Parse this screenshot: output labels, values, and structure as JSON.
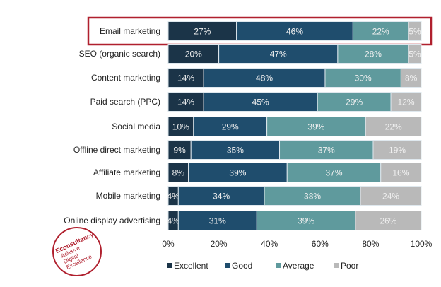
{
  "chart_data": {
    "type": "bar",
    "stacked": true,
    "orientation": "horizontal",
    "categories": [
      "Email marketing",
      "SEO (organic search)",
      "Content marketing",
      "Paid search (PPC)",
      "Social media",
      "Offline direct marketing",
      "Affiliate marketing",
      "Mobile marketing",
      "Online display advertising"
    ],
    "series": [
      {
        "name": "Excellent",
        "color": "#1b3448",
        "values": [
          27,
          20,
          14,
          14,
          10,
          9,
          8,
          4,
          4
        ]
      },
      {
        "name": "Good",
        "color": "#1f4d6d",
        "values": [
          46,
          47,
          48,
          45,
          29,
          35,
          39,
          34,
          31
        ]
      },
      {
        "name": "Average",
        "color": "#5f9a9d",
        "values": [
          22,
          28,
          30,
          29,
          39,
          37,
          37,
          38,
          39
        ]
      },
      {
        "name": "Poor",
        "color": "#b9b9b9",
        "values": [
          5,
          5,
          8,
          12,
          22,
          19,
          16,
          24,
          26
        ]
      }
    ],
    "xlim": [
      0,
      100
    ],
    "xticks": [
      "0%",
      "20%",
      "40%",
      "60%",
      "80%",
      "100%"
    ],
    "legend_position": "bottom",
    "highlighted_category": "Email marketing",
    "highlight_color": "#b0202e"
  },
  "logo": {
    "text": "Econsultancy Achieve Digital Excellence"
  }
}
